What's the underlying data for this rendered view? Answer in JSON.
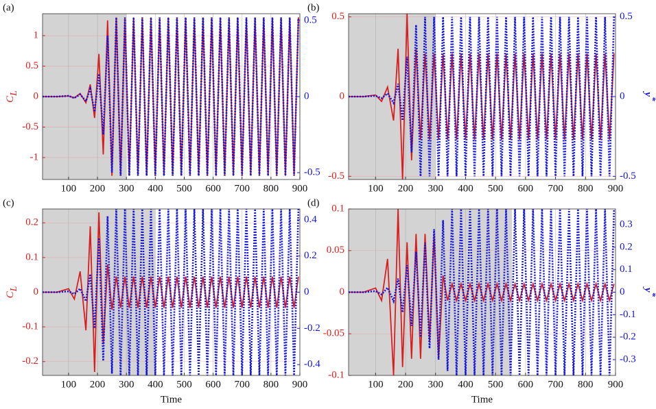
{
  "chart_data": [
    {
      "type": "line",
      "panel_label": "(a)",
      "ylabel": "C",
      "ylabel_sub": "L",
      "xlim": [
        10,
        900
      ],
      "xticks": [
        100,
        200,
        300,
        400,
        500,
        600,
        700,
        800,
        900
      ],
      "ylim": [
        -1.36,
        1.36
      ],
      "yticks": [
        -1,
        -0.5,
        0,
        0.5,
        1
      ],
      "y2lim": [
        -0.545,
        0.545
      ],
      "y2ticks": [
        -0.5,
        0,
        0.5
      ],
      "grid": true,
      "shaded_region": [
        10,
        300
      ],
      "shade_color": "#d3d3d3",
      "x": [
        10,
        60,
        100,
        120,
        140,
        160,
        175,
        190,
        205,
        220,
        235,
        250,
        265,
        280,
        295,
        310,
        325,
        340,
        355,
        370,
        385,
        400,
        415,
        430,
        445,
        460,
        475,
        490,
        505,
        520,
        535,
        550,
        565,
        580,
        595,
        610,
        625,
        640,
        655,
        670,
        685,
        700,
        715,
        730,
        745,
        760,
        775,
        790,
        805,
        820,
        835,
        850,
        865,
        880,
        895
      ],
      "series": [
        {
          "color": "#d81e1e",
          "style": "solid",
          "axis": "y",
          "values": [
            0,
            0,
            0.01,
            -0.02,
            0.05,
            -0.1,
            0.2,
            -0.35,
            0.7,
            -0.95,
            1.25,
            -1.3,
            1.3,
            -1.3,
            1.3,
            -1.3,
            1.3,
            -1.3,
            1.3,
            -1.3,
            1.3,
            -1.3,
            1.3,
            -1.3,
            1.3,
            -1.3,
            1.3,
            -1.3,
            1.3,
            -1.3,
            1.3,
            -1.3,
            1.3,
            -1.3,
            1.3,
            -1.3,
            1.3,
            -1.3,
            1.3,
            -1.3,
            1.3,
            -1.3,
            1.3,
            -1.3,
            1.3,
            -1.3,
            1.3,
            -1.3,
            1.3,
            -1.3,
            1.3,
            -1.3,
            1.3,
            -1.3,
            1.3
          ]
        },
        {
          "color": "#1414e0",
          "style": "dotted",
          "axis": "y2",
          "values": [
            0,
            0,
            0.005,
            -0.01,
            0.015,
            -0.03,
            0.05,
            -0.1,
            0.15,
            -0.25,
            0.4,
            -0.5,
            0.52,
            -0.52,
            0.52,
            -0.52,
            0.52,
            -0.52,
            0.52,
            -0.52,
            0.52,
            -0.52,
            0.52,
            -0.52,
            0.52,
            -0.52,
            0.52,
            -0.52,
            0.52,
            -0.52,
            0.52,
            -0.52,
            0.52,
            -0.52,
            0.52,
            -0.52,
            0.52,
            -0.52,
            0.52,
            -0.52,
            0.52,
            -0.52,
            0.52,
            -0.52,
            0.52,
            -0.52,
            0.52,
            -0.52,
            0.52,
            -0.52,
            0.52,
            -0.52,
            0.52,
            -0.52,
            0.52
          ]
        }
      ]
    },
    {
      "type": "line",
      "panel_label": "(b)",
      "y2label": "y",
      "y2label_sup": "*",
      "xlim": [
        10,
        900
      ],
      "xticks": [
        100,
        200,
        300,
        400,
        500,
        600,
        700,
        800,
        900
      ],
      "ylim": [
        -0.52,
        0.52
      ],
      "yticks": [
        -0.5,
        0,
        0.5
      ],
      "y2lim": [
        -0.52,
        0.52
      ],
      "y2ticks": [
        -0.5,
        0,
        0.5
      ],
      "grid": true,
      "shaded_region": [
        10,
        300
      ],
      "shade_color": "#d3d3d3",
      "x": [
        10,
        60,
        100,
        120,
        140,
        160,
        175,
        190,
        205,
        220,
        235,
        250,
        265,
        280,
        295,
        310,
        325,
        340,
        355,
        370,
        385,
        400,
        415,
        430,
        445,
        460,
        475,
        490,
        505,
        520,
        535,
        550,
        565,
        580,
        595,
        610,
        625,
        640,
        655,
        670,
        685,
        700,
        715,
        730,
        745,
        760,
        775,
        790,
        805,
        820,
        835,
        850,
        865,
        880,
        895
      ],
      "series": [
        {
          "color": "#d81e1e",
          "style": "solid",
          "axis": "y",
          "values": [
            0,
            0,
            0.01,
            -0.03,
            0.06,
            -0.15,
            0.3,
            -0.52,
            0.52,
            -0.4,
            0.3,
            -0.27,
            0.27,
            -0.27,
            0.27,
            -0.27,
            0.27,
            -0.27,
            0.27,
            -0.27,
            0.27,
            -0.27,
            0.27,
            -0.27,
            0.27,
            -0.27,
            0.27,
            -0.27,
            0.27,
            -0.27,
            0.27,
            -0.27,
            0.27,
            -0.27,
            0.27,
            -0.27,
            0.27,
            -0.27,
            0.27,
            -0.27,
            0.27,
            -0.27,
            0.27,
            -0.27,
            0.27,
            -0.27,
            0.27,
            -0.27,
            0.27,
            -0.27,
            0.27,
            -0.27,
            0.27,
            -0.27,
            0.27
          ]
        },
        {
          "color": "#1414e0",
          "style": "dotted",
          "axis": "y2",
          "values": [
            0,
            0,
            0.005,
            -0.01,
            0.02,
            -0.04,
            0.08,
            -0.15,
            0.25,
            -0.35,
            0.45,
            -0.5,
            0.5,
            -0.5,
            0.5,
            -0.5,
            0.5,
            -0.5,
            0.5,
            -0.5,
            0.5,
            -0.5,
            0.5,
            -0.5,
            0.5,
            -0.5,
            0.5,
            -0.5,
            0.5,
            -0.5,
            0.5,
            -0.5,
            0.5,
            -0.5,
            0.5,
            -0.5,
            0.5,
            -0.5,
            0.5,
            -0.5,
            0.5,
            -0.5,
            0.5,
            -0.5,
            0.5,
            -0.5,
            0.5,
            -0.5,
            0.5,
            -0.5,
            0.5,
            -0.5,
            0.5,
            -0.5,
            0.5
          ]
        }
      ]
    },
    {
      "type": "line",
      "panel_label": "(c)",
      "ylabel": "C",
      "ylabel_sub": "L",
      "xlabel": "Time",
      "xlim": [
        10,
        900
      ],
      "xticks": [
        100,
        200,
        300,
        400,
        500,
        600,
        700,
        800,
        900
      ],
      "ylim": [
        -0.24,
        0.24
      ],
      "yticks": [
        -0.2,
        -0.1,
        0,
        0.1,
        0.2
      ],
      "y2lim": [
        -0.46,
        0.46
      ],
      "y2ticks": [
        -0.4,
        -0.2,
        0,
        0.2,
        0.4
      ],
      "grid": true,
      "shaded_region": [
        10,
        400
      ],
      "shade_color": "#d3d3d3",
      "x": [
        10,
        60,
        100,
        120,
        140,
        160,
        175,
        190,
        205,
        220,
        235,
        250,
        265,
        280,
        295,
        310,
        325,
        340,
        355,
        370,
        385,
        400,
        415,
        430,
        445,
        460,
        475,
        490,
        505,
        520,
        535,
        550,
        565,
        580,
        595,
        610,
        625,
        640,
        655,
        670,
        685,
        700,
        715,
        730,
        745,
        760,
        775,
        790,
        805,
        820,
        835,
        850,
        865,
        880,
        895
      ],
      "series": [
        {
          "color": "#d81e1e",
          "style": "solid",
          "axis": "y",
          "values": [
            0,
            0,
            0.01,
            -0.02,
            0.06,
            -0.11,
            0.19,
            -0.23,
            0.23,
            -0.15,
            0.08,
            -0.05,
            0.045,
            -0.045,
            0.045,
            -0.045,
            0.045,
            -0.045,
            0.045,
            -0.045,
            0.045,
            -0.045,
            0.045,
            -0.045,
            0.045,
            -0.045,
            0.045,
            -0.045,
            0.045,
            -0.045,
            0.045,
            -0.045,
            0.045,
            -0.045,
            0.045,
            -0.045,
            0.045,
            -0.045,
            0.045,
            -0.045,
            0.045,
            -0.045,
            0.045,
            -0.045,
            0.045,
            -0.045,
            0.045,
            -0.045,
            0.045,
            -0.045,
            0.045,
            -0.045,
            0.045,
            -0.045,
            0.045
          ]
        },
        {
          "color": "#1414e0",
          "style": "dotted",
          "axis": "y2",
          "values": [
            0,
            0,
            0.005,
            -0.01,
            0.02,
            -0.05,
            0.1,
            -0.2,
            0.3,
            -0.38,
            0.42,
            -0.45,
            0.46,
            -0.46,
            0.46,
            -0.46,
            0.46,
            -0.46,
            0.46,
            -0.46,
            0.46,
            -0.46,
            0.46,
            -0.46,
            0.46,
            -0.46,
            0.46,
            -0.46,
            0.46,
            -0.46,
            0.46,
            -0.46,
            0.46,
            -0.46,
            0.46,
            -0.46,
            0.46,
            -0.46,
            0.46,
            -0.46,
            0.46,
            -0.46,
            0.46,
            -0.46,
            0.46,
            -0.46,
            0.46,
            -0.46,
            0.46,
            -0.46,
            0.46,
            -0.46,
            0.46,
            -0.46,
            0.46
          ]
        }
      ]
    },
    {
      "type": "line",
      "panel_label": "(d)",
      "y2label": "y",
      "y2label_sup": "*",
      "xlabel": "Time",
      "xlim": [
        10,
        900
      ],
      "xticks": [
        100,
        200,
        300,
        400,
        500,
        600,
        700,
        800,
        900
      ],
      "ylim": [
        -0.1,
        0.1
      ],
      "yticks": [
        -0.1,
        -0.05,
        0,
        0.05,
        0.1
      ],
      "y2lim": [
        -0.37,
        0.37
      ],
      "y2ticks": [
        -0.3,
        -0.2,
        -0.1,
        0,
        0.1,
        0.2,
        0.3
      ],
      "grid": true,
      "shaded_region": [
        10,
        555
      ],
      "shade_color": "#d3d3d3",
      "x": [
        10,
        60,
        100,
        120,
        140,
        160,
        175,
        190,
        205,
        220,
        235,
        250,
        265,
        280,
        295,
        310,
        325,
        340,
        355,
        370,
        385,
        400,
        415,
        430,
        445,
        460,
        475,
        490,
        505,
        520,
        535,
        550,
        565,
        580,
        595,
        610,
        625,
        640,
        655,
        670,
        685,
        700,
        715,
        730,
        745,
        760,
        775,
        790,
        805,
        820,
        835,
        850,
        865,
        880,
        895
      ],
      "series": [
        {
          "color": "#d81e1e",
          "style": "solid",
          "axis": "y",
          "values": [
            0,
            0,
            0.005,
            -0.01,
            0.04,
            -0.1,
            0.1,
            -0.09,
            0.06,
            -0.08,
            0.07,
            -0.08,
            0.07,
            -0.06,
            0.07,
            -0.08,
            0.02,
            -0.01,
            0.01,
            -0.01,
            0.01,
            -0.01,
            0.01,
            -0.01,
            0.01,
            -0.01,
            0.01,
            -0.01,
            0.01,
            -0.01,
            0.01,
            -0.01,
            0.01,
            -0.01,
            0.01,
            -0.01,
            0.01,
            -0.01,
            0.01,
            -0.01,
            0.01,
            -0.01,
            0.01,
            -0.01,
            0.01,
            -0.01,
            0.01,
            -0.01,
            0.01,
            -0.01,
            0.01,
            -0.01,
            0.01,
            -0.01,
            0.01
          ]
        },
        {
          "color": "#1414e0",
          "style": "dotted",
          "axis": "y2",
          "values": [
            0,
            0,
            0.005,
            -0.01,
            0.02,
            -0.04,
            0.06,
            -0.09,
            0.12,
            -0.15,
            0.18,
            -0.2,
            0.22,
            -0.25,
            0.28,
            -0.3,
            0.32,
            -0.35,
            0.37,
            -0.37,
            0.37,
            -0.37,
            0.37,
            -0.37,
            0.37,
            -0.37,
            0.37,
            -0.37,
            0.37,
            -0.37,
            0.37,
            -0.37,
            0.37,
            -0.37,
            0.37,
            -0.37,
            0.37,
            -0.37,
            0.37,
            -0.37,
            0.37,
            -0.37,
            0.37,
            -0.37,
            0.37,
            -0.37,
            0.37,
            -0.37,
            0.37,
            -0.37,
            0.37,
            -0.37,
            0.37,
            -0.37,
            0.37
          ]
        }
      ]
    }
  ]
}
